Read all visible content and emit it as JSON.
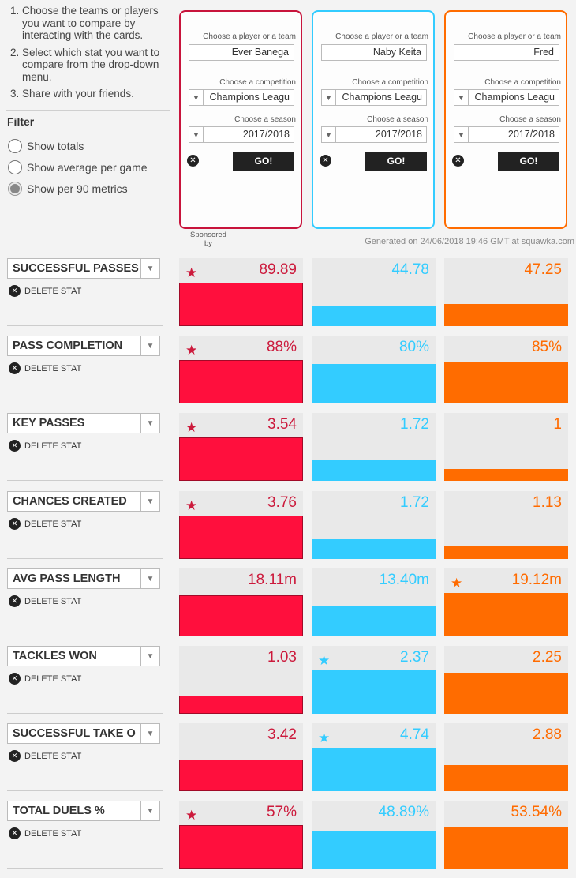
{
  "instructions": [
    "Choose the teams or players you want to compare by interacting with the cards.",
    "Select which stat you want to compare from the drop-down menu.",
    "Share with your friends."
  ],
  "filter": {
    "title": "Filter",
    "options": [
      "Show totals",
      "Show average per game",
      "Show per 90 metrics"
    ],
    "selected": "Show per 90 metrics"
  },
  "cards": [
    {
      "player_label": "Choose a player or a team",
      "player": "Ever Banega",
      "competition_label": "Choose a competition",
      "competition": "Champions Leagu",
      "season_label": "Choose a season",
      "season": "2017/2018",
      "go": "GO!",
      "color": "#c8143c"
    },
    {
      "player_label": "Choose a player or a team",
      "player": "Naby Keita",
      "competition_label": "Choose a competition",
      "competition": "Champions Leagu",
      "season_label": "Choose a season",
      "season": "2017/2018",
      "go": "GO!",
      "color": "#33ccff"
    },
    {
      "player_label": "Choose a player or a team",
      "player": "Fred",
      "competition_label": "Choose a competition",
      "competition": "Champions Leagu",
      "season_label": "Choose a season",
      "season": "2017/2018",
      "go": "GO!",
      "color": "#ff6c00"
    }
  ],
  "sponsored": "Sponsored by",
  "generated": "Generated on 24/06/2018 19:46 GMT at squawka.com",
  "delete_label": "DELETE STAT",
  "stats": [
    {
      "name": "SUCCESSFUL PASSES",
      "values": [
        "89.89",
        "44.78",
        "47.25"
      ],
      "fill": [
        0.64,
        0.3,
        0.32
      ],
      "star": 0
    },
    {
      "name": "PASS COMPLETION",
      "values": [
        "88%",
        "80%",
        "85%"
      ],
      "fill": [
        0.64,
        0.58,
        0.62
      ],
      "star": 0
    },
    {
      "name": "KEY PASSES",
      "values": [
        "3.54",
        "1.72",
        "1"
      ],
      "fill": [
        0.64,
        0.3,
        0.17
      ],
      "star": 0
    },
    {
      "name": "CHANCES CREATED",
      "values": [
        "3.76",
        "1.72",
        "1.13"
      ],
      "fill": [
        0.64,
        0.29,
        0.19
      ],
      "star": 0
    },
    {
      "name": "AVG PASS LENGTH",
      "values": [
        "18.11m",
        "13.40m",
        "19.12m"
      ],
      "fill": [
        0.6,
        0.44,
        0.64
      ],
      "star": 2
    },
    {
      "name": "TACKLES WON",
      "values": [
        "1.03",
        "2.37",
        "2.25"
      ],
      "fill": [
        0.27,
        0.64,
        0.6
      ],
      "star": 1
    },
    {
      "name": "SUCCESSFUL TAKE O",
      "values": [
        "3.42",
        "4.74",
        "2.88"
      ],
      "fill": [
        0.46,
        0.64,
        0.38
      ],
      "star": 1
    },
    {
      "name": "TOTAL DUELS %",
      "values": [
        "57%",
        "48.89%",
        "53.54%"
      ],
      "fill": [
        0.64,
        0.55,
        0.6
      ],
      "star": 0
    }
  ]
}
